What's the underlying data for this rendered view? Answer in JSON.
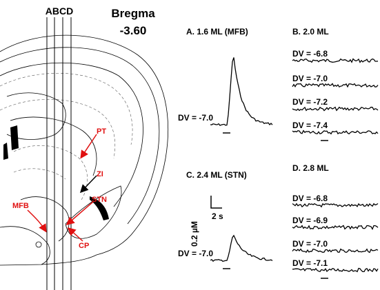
{
  "header": {
    "lines": "ABCD",
    "title": "Bregma",
    "coordinate": "-3.60"
  },
  "atlas_labels": [
    "PT",
    "ZI",
    "STN",
    "MFB",
    "CP"
  ],
  "panels": [
    {
      "title": "A. 1.6 ML (MFB)",
      "traces": [
        "DV = -7.0"
      ]
    },
    {
      "title": "B. 2.0 ML",
      "traces": [
        "DV = -6.8",
        "DV = -7.0",
        "DV = -7.2",
        "DV = -7.4"
      ]
    },
    {
      "title": "C. 2.4 ML (STN)",
      "traces": [
        "DV = -7.0"
      ]
    },
    {
      "title": "D. 2.8 ML",
      "traces": [
        "DV = -6.8",
        "DV = -6.9",
        "DV = -7.0",
        "DV = -7.1"
      ]
    }
  ],
  "scale_bar": {
    "time": "2 s",
    "concentration": "0.2 µM"
  }
}
